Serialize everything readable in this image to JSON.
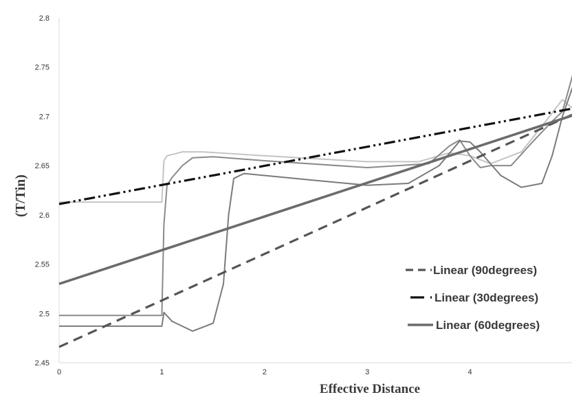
{
  "chart_data": {
    "type": "line",
    "title": "",
    "xlabel": "Effective Distance",
    "ylabel": "(T/Tin)",
    "xlim": [
      0,
      5
    ],
    "ylim": [
      2.45,
      2.8
    ],
    "x_ticks": [
      "0",
      "1",
      "2",
      "3",
      "4"
    ],
    "y_ticks": [
      "2.45",
      "2.5",
      "2.55",
      "2.6",
      "2.65",
      "2.7",
      "2.75",
      "2.8"
    ],
    "grid": false,
    "legend_position": "bottom-right",
    "series": [
      {
        "name": "Linear (90degrees)",
        "kind": "trendline",
        "style": "dash",
        "color": "#555555",
        "x": [
          0,
          5
        ],
        "y": [
          2.466,
          2.702
        ]
      },
      {
        "name": "Linear (30degrees)",
        "kind": "trendline",
        "style": "dash-dot-dot",
        "color": "#111111",
        "x": [
          0,
          5
        ],
        "y": [
          2.611,
          2.708
        ]
      },
      {
        "name": "Linear (60degrees)",
        "kind": "trendline",
        "style": "solid",
        "color": "#6b6b6b",
        "x": [
          0,
          5
        ],
        "y": [
          2.53,
          2.701
        ]
      },
      {
        "kind": "data",
        "style": "solid",
        "color": "#c4c4c4",
        "x": [
          0,
          1.0,
          1.02,
          1.05,
          1.2,
          1.4,
          2.0,
          3.0,
          3.5,
          3.8,
          4.0,
          4.2,
          4.5,
          4.7,
          4.9,
          5.0
        ],
        "y": [
          2.613,
          2.613,
          2.655,
          2.66,
          2.664,
          2.664,
          2.66,
          2.654,
          2.654,
          2.663,
          2.66,
          2.652,
          2.664,
          2.69,
          2.717,
          2.708
        ]
      },
      {
        "kind": "data",
        "style": "solid",
        "color": "#8a8a8a",
        "x": [
          0,
          1.0,
          1.02,
          1.05,
          1.1,
          1.2,
          1.3,
          1.5,
          2.0,
          3.0,
          3.6,
          3.8,
          3.9,
          4.0,
          4.1,
          4.2,
          4.4,
          4.6,
          4.8,
          4.9,
          5.0
        ],
        "y": [
          2.498,
          2.498,
          2.59,
          2.63,
          2.638,
          2.65,
          2.658,
          2.659,
          2.655,
          2.648,
          2.652,
          2.67,
          2.676,
          2.66,
          2.648,
          2.65,
          2.65,
          2.673,
          2.695,
          2.705,
          2.742
        ]
      },
      {
        "kind": "data",
        "style": "solid",
        "color": "#7a7a7a",
        "x": [
          0,
          1.0,
          1.02,
          1.1,
          1.3,
          1.5,
          1.6,
          1.65,
          1.7,
          1.8,
          2.0,
          2.5,
          3.0,
          3.4,
          3.7,
          3.9,
          4.0,
          4.1,
          4.3,
          4.5,
          4.7,
          4.8,
          4.9,
          5.0
        ],
        "y": [
          2.487,
          2.487,
          2.501,
          2.492,
          2.482,
          2.49,
          2.53,
          2.6,
          2.637,
          2.642,
          2.64,
          2.635,
          2.63,
          2.632,
          2.65,
          2.675,
          2.674,
          2.664,
          2.64,
          2.628,
          2.632,
          2.66,
          2.7,
          2.73
        ]
      }
    ]
  }
}
